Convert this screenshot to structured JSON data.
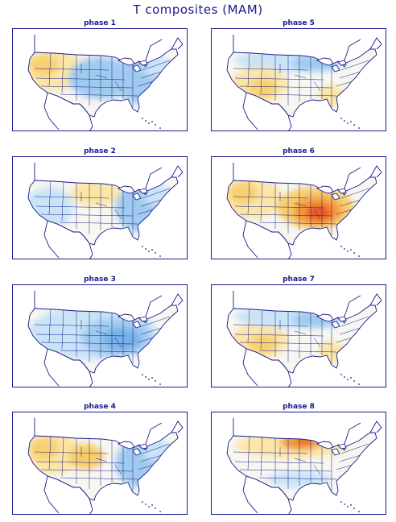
{
  "title": "T composites (MAM)",
  "colors": {
    "frame": "#1a1a8c",
    "land_neutral": "#f7f7f2",
    "cold_light": "#c9e4f7",
    "cold": "#9fcbee",
    "cold_strong": "#74b0e6",
    "warm_light": "#fbe6a6",
    "warm": "#f7cd6a",
    "warm_strong": "#f39a3c",
    "hot": "#ec5a23",
    "water": "#ffffff"
  },
  "panels": [
    {
      "label": "phase 1",
      "pattern": [
        "warm-west",
        "cold-center",
        "cold-east"
      ]
    },
    {
      "label": "phase 5",
      "pattern": [
        "cold-north",
        "warm-southwest",
        "warm-southeast"
      ]
    },
    {
      "label": "phase 2",
      "pattern": [
        "cold-west",
        "warm-north-central",
        "cold-east"
      ]
    },
    {
      "label": "phase 6",
      "pattern": [
        "warm-west",
        "hot-east-central"
      ]
    },
    {
      "label": "phase 3",
      "pattern": [
        "cold-all",
        "cold-strong-east"
      ]
    },
    {
      "label": "phase 7",
      "pattern": [
        "warm-southwest",
        "cold-north",
        "warm-southeast"
      ]
    },
    {
      "label": "phase 4",
      "pattern": [
        "warm-west",
        "warm-central",
        "cold-east"
      ]
    },
    {
      "label": "phase 8",
      "pattern": [
        "warm-north",
        "hot-north-central",
        "cold-south"
      ]
    }
  ]
}
